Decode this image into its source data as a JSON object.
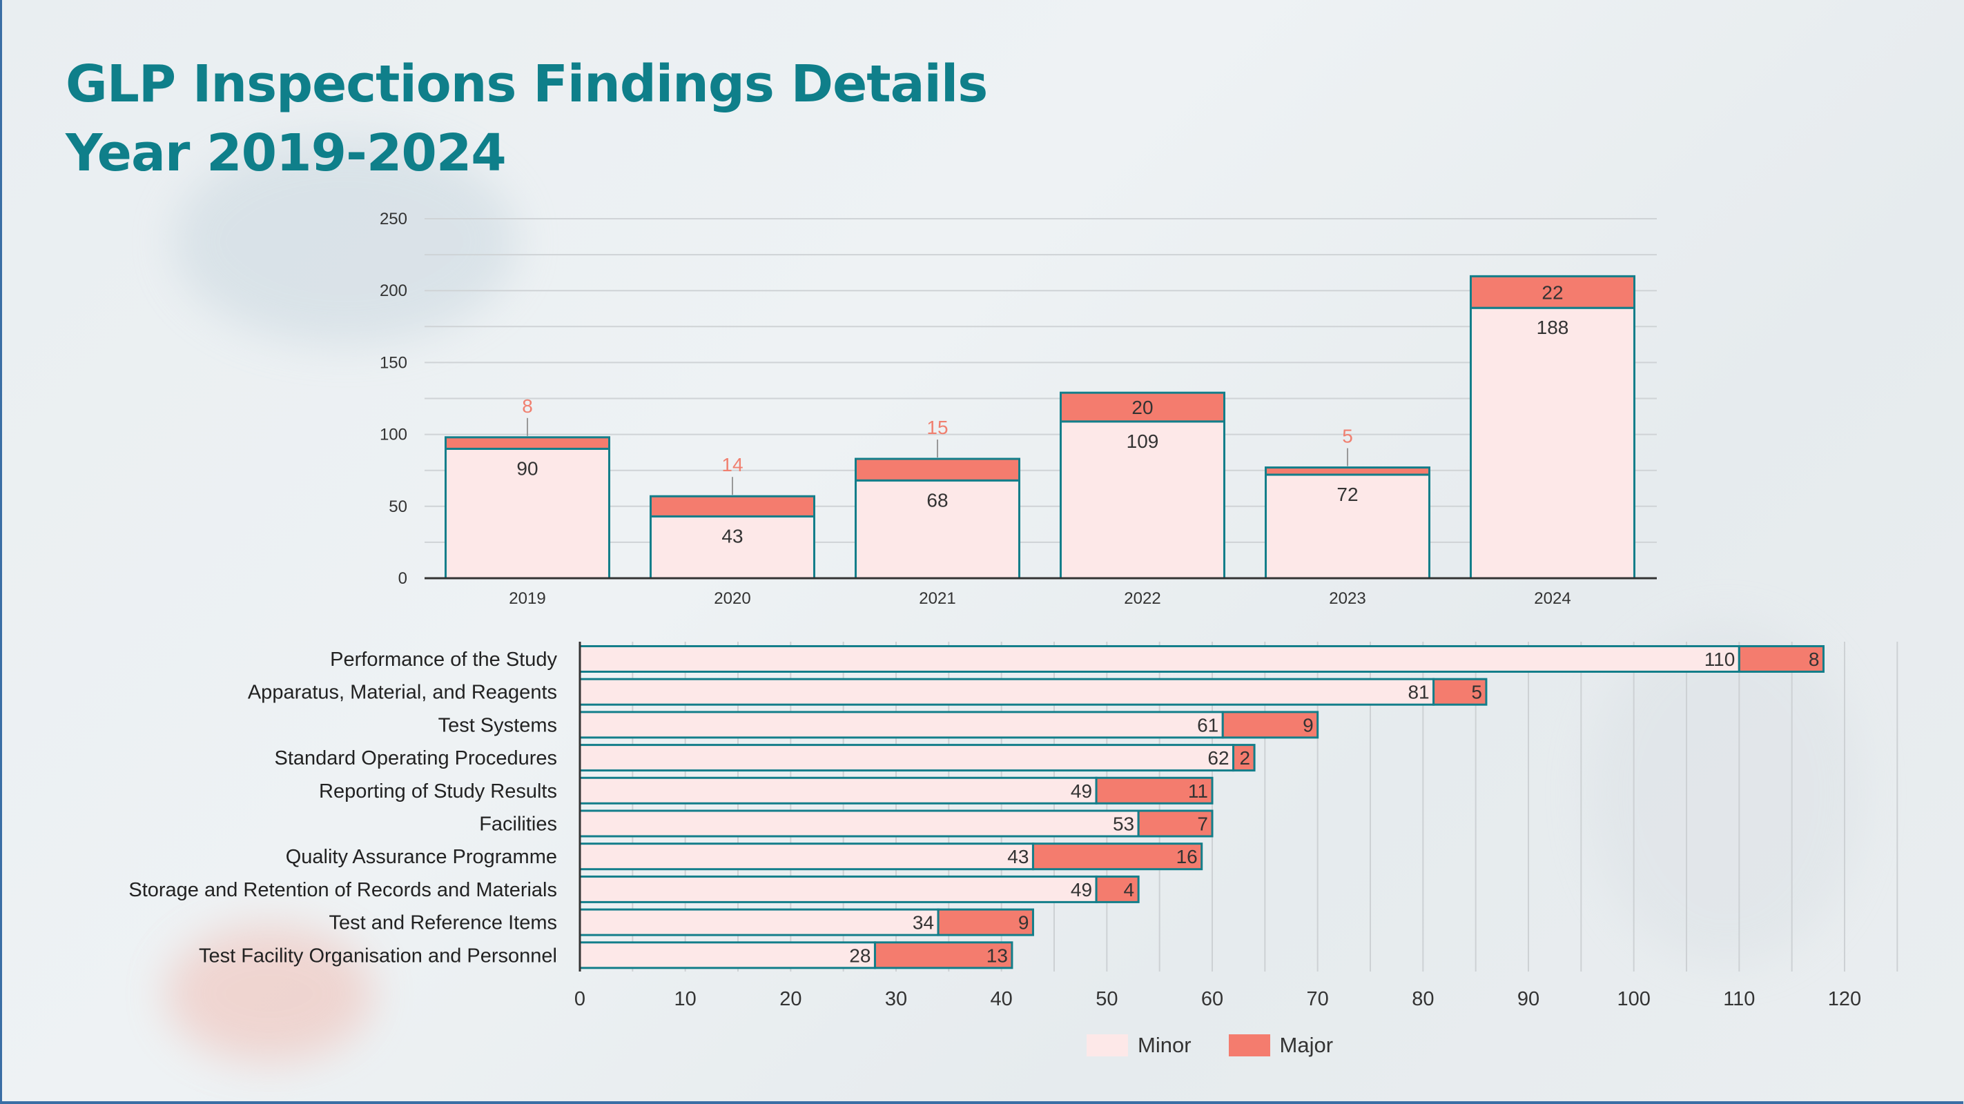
{
  "title": {
    "line1": "GLP Inspections Findings Details",
    "line2": "Year 2019-2024"
  },
  "colors": {
    "minor": "#fde8e8",
    "major": "#f47c6e",
    "border": "#137e8a",
    "title": "#0f7f8a",
    "label_outside": "#f08070"
  },
  "legend": [
    {
      "label": "Minor",
      "color": "#fde8e8"
    },
    {
      "label": "Major",
      "color": "#f47c6e"
    }
  ],
  "chart_data": [
    {
      "type": "bar",
      "orientation": "vertical",
      "stacked": true,
      "title": "",
      "categories": [
        "2019",
        "2020",
        "2021",
        "2022",
        "2023",
        "2024"
      ],
      "series": [
        {
          "name": "Minor",
          "values": [
            90,
            43,
            68,
            109,
            72,
            188
          ]
        },
        {
          "name": "Major",
          "values": [
            8,
            14,
            15,
            20,
            5,
            22
          ]
        }
      ],
      "ylim": [
        0,
        250
      ],
      "yticks": [
        0,
        50,
        100,
        150,
        200,
        250
      ],
      "grid": true,
      "xlabel": "",
      "ylabel": ""
    },
    {
      "type": "bar",
      "orientation": "horizontal",
      "stacked": true,
      "title": "",
      "categories": [
        "Performance of the Study",
        "Apparatus, Material, and Reagents",
        "Test Systems",
        "Standard Operating Procedures",
        "Reporting of Study Results",
        "Facilities",
        "Quality Assurance Programme",
        "Storage and Retention of Records and Materials",
        "Test and Reference Items",
        "Test Facility Organisation and Personnel"
      ],
      "series": [
        {
          "name": "Minor",
          "values": [
            110,
            81,
            61,
            62,
            49,
            53,
            43,
            49,
            34,
            28
          ]
        },
        {
          "name": "Major",
          "values": [
            8,
            5,
            9,
            2,
            11,
            7,
            16,
            4,
            9,
            13
          ]
        }
      ],
      "xlim": [
        0,
        120
      ],
      "xticks": [
        0,
        10,
        20,
        30,
        40,
        50,
        60,
        70,
        80,
        90,
        100,
        110,
        120
      ],
      "grid": true,
      "legend_position": "bottom-center",
      "xlabel": "",
      "ylabel": ""
    }
  ]
}
